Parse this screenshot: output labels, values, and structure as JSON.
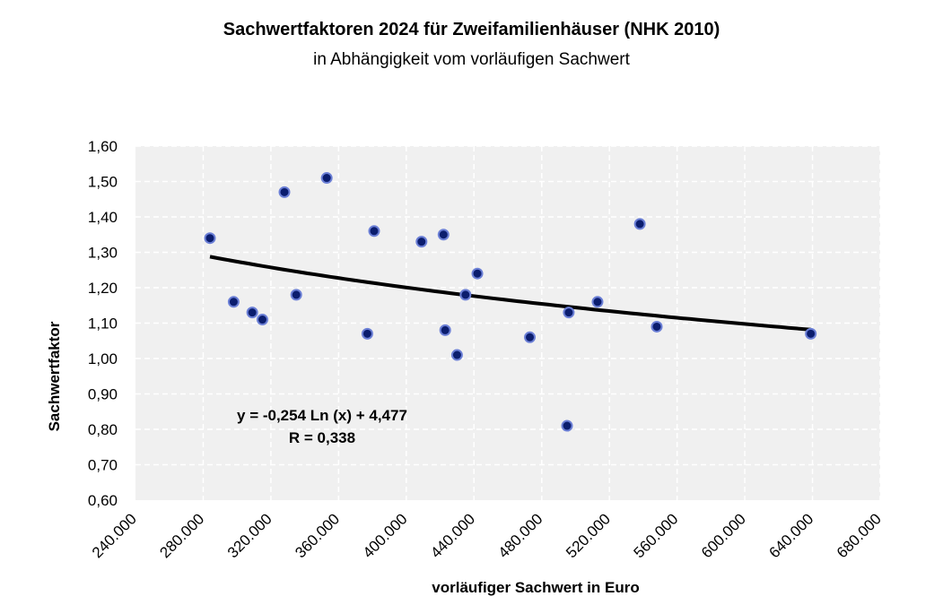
{
  "chart_data": {
    "type": "scatter",
    "title": "Sachwertfaktoren 2024 für Zweifamilienhäuser (NHK 2010)",
    "subtitle": "in Abhängigkeit vom vorläufigen Sachwert",
    "xlabel": "vorläufiger Sachwert in Euro",
    "ylabel": "Sachwertfaktor",
    "xlim": [
      240000,
      680000
    ],
    "ylim": [
      0.6,
      1.6
    ],
    "x_ticks": [
      240000,
      280000,
      320000,
      360000,
      400000,
      440000,
      480000,
      520000,
      560000,
      600000,
      640000,
      680000
    ],
    "x_tick_labels": [
      "240.000",
      "280.000",
      "320.000",
      "360.000",
      "400.000",
      "440.000",
      "480.000",
      "520.000",
      "560.000",
      "600.000",
      "640.000",
      "680.000"
    ],
    "y_ticks": [
      0.6,
      0.7,
      0.8,
      0.9,
      1.0,
      1.1,
      1.2,
      1.3,
      1.4,
      1.5,
      1.6
    ],
    "y_tick_labels": [
      "0,60",
      "0,70",
      "0,80",
      "0,90",
      "1,00",
      "1,10",
      "1,20",
      "1,30",
      "1,40",
      "1,50",
      "1,60"
    ],
    "grid": true,
    "points": [
      {
        "x": 284000,
        "y": 1.34
      },
      {
        "x": 298000,
        "y": 1.16
      },
      {
        "x": 309000,
        "y": 1.13
      },
      {
        "x": 315000,
        "y": 1.11
      },
      {
        "x": 328000,
        "y": 1.47
      },
      {
        "x": 335000,
        "y": 1.18
      },
      {
        "x": 353000,
        "y": 1.51
      },
      {
        "x": 377000,
        "y": 1.07
      },
      {
        "x": 381000,
        "y": 1.36
      },
      {
        "x": 409000,
        "y": 1.33
      },
      {
        "x": 422000,
        "y": 1.35
      },
      {
        "x": 423000,
        "y": 1.08
      },
      {
        "x": 430000,
        "y": 1.01
      },
      {
        "x": 435000,
        "y": 1.18
      },
      {
        "x": 442000,
        "y": 1.24
      },
      {
        "x": 473000,
        "y": 1.06
      },
      {
        "x": 495000,
        "y": 0.81
      },
      {
        "x": 496000,
        "y": 1.13
      },
      {
        "x": 513000,
        "y": 1.16
      },
      {
        "x": 538000,
        "y": 1.38
      },
      {
        "x": 548000,
        "y": 1.09
      },
      {
        "x": 639000,
        "y": 1.07
      }
    ],
    "trendline": {
      "type": "logarithmic",
      "a": -0.254,
      "b": 4.477,
      "x_from": 284000,
      "x_to": 639000
    },
    "annotations": [
      "y = -0,254 Ln (x) + 4,477",
      "R = 0,338"
    ]
  },
  "colors": {
    "plot_background": "#f0f0f0",
    "grid": "#ffffff",
    "point_fill": "#0b1d6e",
    "point_stroke": "#6b7fd6",
    "trendline": "#000000"
  }
}
